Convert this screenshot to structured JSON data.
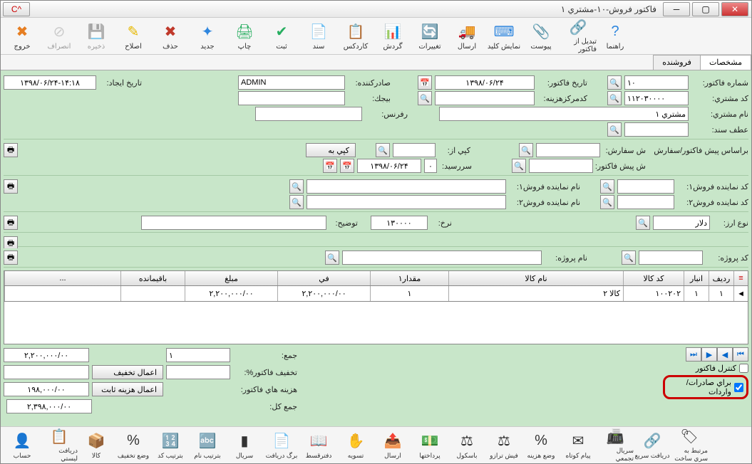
{
  "window": {
    "title": "فاکتور فروش-۱۰-مشتري ۱"
  },
  "toolbar": [
    {
      "name": "exit-button",
      "label": "خروج",
      "color": "#e67e22",
      "glyph": "✖"
    },
    {
      "name": "cancel-button",
      "label": "انصراف",
      "color": "#999",
      "glyph": "⊘",
      "disabled": true
    },
    {
      "name": "save-button",
      "label": "ذخيره",
      "color": "#999",
      "glyph": "💾",
      "disabled": true
    },
    {
      "name": "edit-button",
      "label": "اصلاح",
      "color": "#e6b800",
      "glyph": "✎"
    },
    {
      "name": "delete-button",
      "label": "حذف",
      "color": "#c0392b",
      "glyph": "✖"
    },
    {
      "name": "new-button",
      "label": "جديد",
      "color": "#2e86de",
      "glyph": "✦"
    },
    {
      "name": "print-button",
      "label": "چاپ",
      "color": "#27ae60",
      "glyph": "🖨"
    },
    {
      "name": "register-button",
      "label": "ثبت",
      "color": "#27ae60",
      "glyph": "✔"
    },
    {
      "name": "document-button",
      "label": "سند",
      "color": "#2e86de",
      "glyph": "📄"
    },
    {
      "name": "kardex-button",
      "label": "کاردکس",
      "color": "#e6b800",
      "glyph": "📋"
    },
    {
      "name": "flow-button",
      "label": "گردش",
      "color": "#2e86de",
      "glyph": "📊"
    },
    {
      "name": "changes-button",
      "label": "تغييرات",
      "color": "#27ae60",
      "glyph": "🔄"
    },
    {
      "name": "send-button",
      "label": "ارسال",
      "color": "#c0392b",
      "glyph": "🚚"
    },
    {
      "name": "keyboard-button",
      "label": "نمايش کليد",
      "color": "#2e86de",
      "glyph": "⌨"
    },
    {
      "name": "attach-button",
      "label": "پيوست",
      "color": "#555",
      "glyph": "📎"
    },
    {
      "name": "convert-button",
      "label": "تبديل از فاکتور",
      "color": "#2e86de",
      "glyph": "🔗"
    },
    {
      "name": "help-button",
      "label": "راهنما",
      "color": "#2e86de",
      "glyph": "?"
    }
  ],
  "tabs": {
    "t1": "مشخصات",
    "t2": "فروشنده"
  },
  "header": {
    "invoice_no_lbl": "شماره فاکتور:",
    "invoice_no": "۱۰",
    "customer_code_lbl": "کد مشتري:",
    "customer_code": "۱۱۲۰۳۰۰۰۰",
    "customer_name_lbl": "نام مشتري:",
    "customer_name": "مشتري ۱",
    "doc_ref_lbl": "عطف سند:",
    "invoice_date_lbl": "تاريخ فاکتور:",
    "invoice_date": "۱۳۹۸/۰۶/۲۴",
    "cost_center_lbl": "کدمرکزهزينه:",
    "issuer_lbl": "صادرکننده:",
    "issuer": "ADMIN",
    "bijak_lbl": "بيجك:",
    "reference_lbl": "رفرنس:",
    "create_date_lbl": "تاريخ ايجاد:",
    "create_date": "۱۳۹۸/۰۶/۲۴-۱۴:۱۸"
  },
  "mid": {
    "proforma_lbl": "براساس پيش فاکتور/سفارش",
    "order_no_lbl": "ش سفارش:",
    "pre_invoice_lbl": "ش پيش فاکتور:",
    "copy_from_lbl": "کپي از:",
    "copy_to_lbl": "کپي به",
    "due_date_lbl": "سررسيد:",
    "due_date": "۱۳۹۸/۰۶/۲۴",
    "due_days": "۰",
    "rep1_code_lbl": "کد نماينده فروش۱:",
    "rep1_name_lbl": "نام نماينده فروش۱:",
    "rep2_code_lbl": "کد نماينده فروش۲:",
    "rep2_name_lbl": "نام نماينده فروش۲:",
    "currency_lbl": "نوع ارز:",
    "currency": "دلار",
    "rate_lbl": "نرخ:",
    "rate": "۱۳۰۰۰۰",
    "desc_lbl": "توضيح:",
    "project_code_lbl": "کد پروژه:",
    "project_name_lbl": "نام پروژه:"
  },
  "grid": {
    "cols": {
      "row": "رديف",
      "wh": "انبار",
      "code": "کد کالا",
      "name": "نام کالا",
      "qty1": "مقدار۱",
      "price": "في",
      "total": "مبلغ",
      "remain": "باقيمانده",
      "more": "..."
    },
    "r": {
      "row": "۱",
      "wh": "۱",
      "code": "۱۰۰۲۰۲",
      "name": "کالا ۲",
      "qty1": "۱",
      "price": "۲,۲۰۰,۰۰۰/۰۰",
      "total": "۲,۲۰۰,۰۰۰/۰۰",
      "remain": ""
    }
  },
  "totals": {
    "sum_lbl": "جمع:",
    "sum_qty": "۱",
    "sum_val": "۲,۲۰۰,۰۰۰/۰۰",
    "disc_pct_lbl": "تخفيف فاکتور%:",
    "apply_disc": "اعمال تخفيف",
    "costs_lbl": "هزينه هاي فاکتور:",
    "costs": "۱۹۸,۰۰۰/۰۰",
    "apply_cost": "اعمال هزينه ثابت",
    "grand_lbl": "جمع کل:",
    "grand": "۲,۳۹۸,۰۰۰/۰۰",
    "ctrl_invoice": "کنترل فاکتور",
    "for_export": "براي صادرات/ واردات"
  },
  "bottom": [
    {
      "name": "account-button",
      "label": "حساب",
      "glyph": "👤"
    },
    {
      "name": "list-receive-button",
      "label": "دريافت ليستي",
      "glyph": "📋"
    },
    {
      "name": "goods-button",
      "label": "کالا",
      "glyph": "📦"
    },
    {
      "name": "discount-set-button",
      "label": "وضع تخفيف",
      "glyph": "%"
    },
    {
      "name": "sort-code-button",
      "label": "بترتيب کد",
      "glyph": "🔢"
    },
    {
      "name": "sort-name-button",
      "label": "بترتيب نام",
      "glyph": "🔤"
    },
    {
      "name": "serial-button",
      "label": "سريال",
      "glyph": "▮"
    },
    {
      "name": "receipt-sheet-button",
      "label": "برگ دريافت",
      "glyph": "📄"
    },
    {
      "name": "ledger-button",
      "label": "دفترقسط",
      "glyph": "📖"
    },
    {
      "name": "settle-button",
      "label": "تسويه",
      "glyph": "✋"
    },
    {
      "name": "send2-button",
      "label": "ارسال",
      "glyph": "📤"
    },
    {
      "name": "payments-button",
      "label": "پرداختها",
      "glyph": "💵"
    },
    {
      "name": "scale-button",
      "label": "باسکول",
      "glyph": "⚖"
    },
    {
      "name": "balance-fish-button",
      "label": "فيش ترازو",
      "glyph": "⚖"
    },
    {
      "name": "cost-set-button",
      "label": "وضع هزينه",
      "glyph": "%"
    },
    {
      "name": "short-msg-button",
      "label": "پيام کوتاه",
      "glyph": "✉"
    },
    {
      "name": "agg-serial-button",
      "label": "سريال تجمعي",
      "glyph": "📠"
    },
    {
      "name": "fast-receive-button",
      "label": "دريافت سريع",
      "glyph": "🔗"
    },
    {
      "name": "series-link-button",
      "label": "مرتبط به سري ساخت",
      "glyph": "🏷"
    }
  ]
}
